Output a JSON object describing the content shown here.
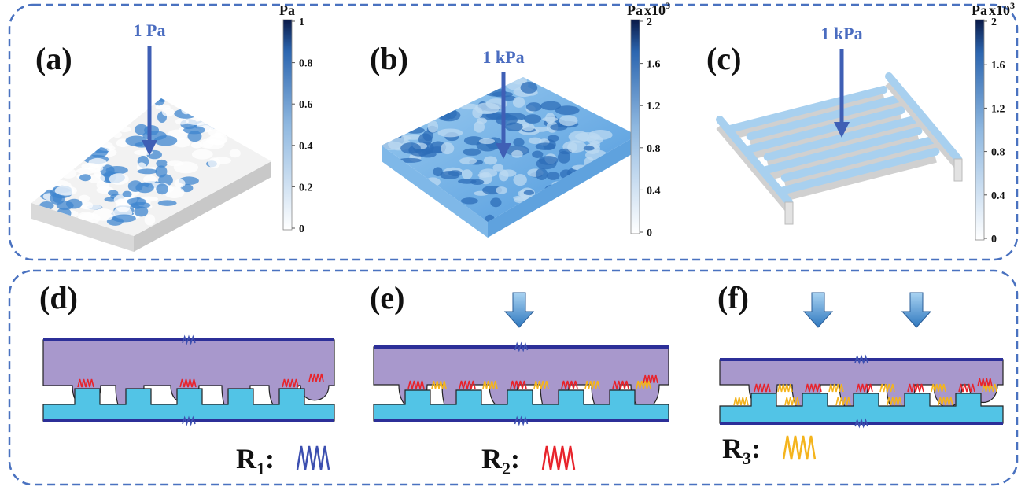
{
  "top_panels": [
    {
      "label": "(a)",
      "pressure": "1 Pa",
      "unit": "Pa",
      "ticks": [
        "1",
        "0.8",
        "0.6",
        "0.4",
        "0.2",
        "0"
      ]
    },
    {
      "label": "(b)",
      "pressure": "1 kPa",
      "unit": "Pa",
      "multiplier": "x10",
      "exponent": "3",
      "ticks": [
        "2",
        "1.6",
        "1.2",
        "0.8",
        "0.4",
        "0"
      ]
    },
    {
      "label": "(c)",
      "pressure": "1 kPa",
      "unit": "Pa",
      "multiplier": "x10",
      "exponent": "3",
      "ticks": [
        "2",
        "1.6",
        "1.2",
        "0.8",
        "0.4",
        "0"
      ]
    }
  ],
  "bottom_panels": [
    {
      "label": "(d)"
    },
    {
      "label": "(e)"
    },
    {
      "label": "(f)"
    }
  ],
  "legend": [
    {
      "symbol": "R",
      "subscript": "1",
      "suffix": ":"
    },
    {
      "symbol": "R",
      "subscript": "2",
      "suffix": ":"
    },
    {
      "symbol": "R",
      "subscript": "3",
      "suffix": ":"
    }
  ]
}
